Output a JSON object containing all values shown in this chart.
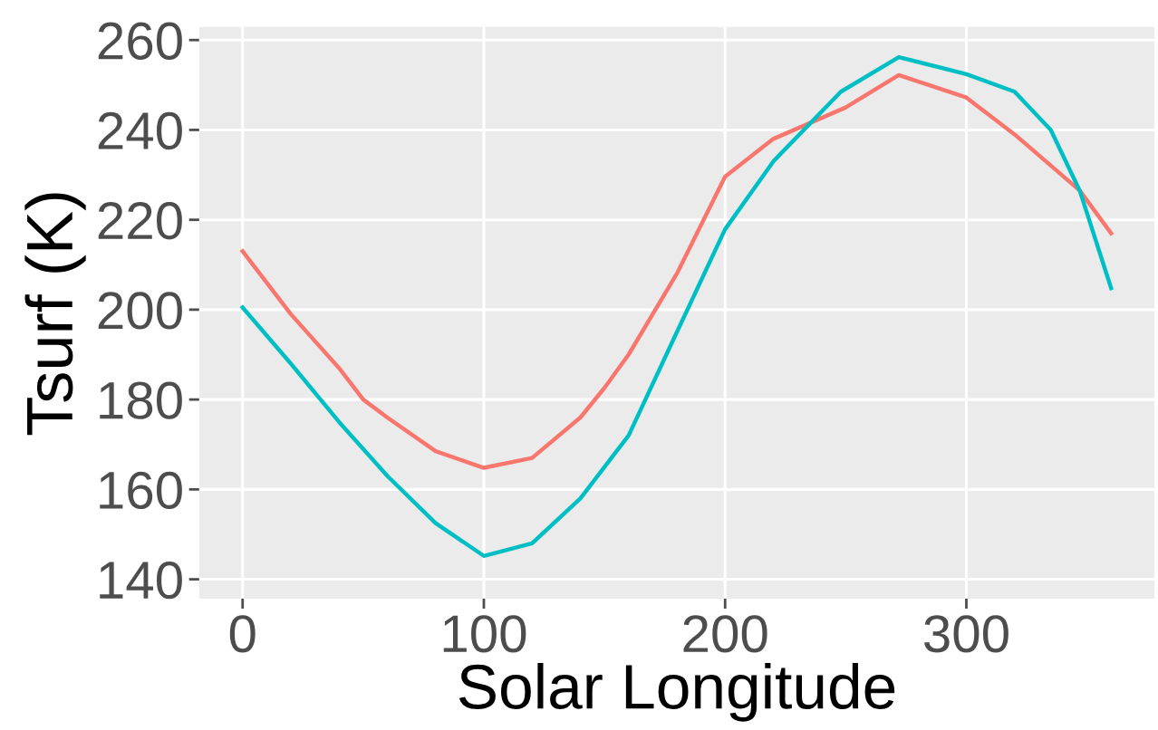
{
  "chart_data": {
    "type": "line",
    "xlabel": "Solar Longitude",
    "ylabel": "Tsurf (K)",
    "xlim": [
      -18,
      378
    ],
    "ylim": [
      135.7,
      262.9
    ],
    "xticks": [
      0,
      100,
      200,
      300
    ],
    "yticks": [
      140,
      160,
      180,
      200,
      220,
      240,
      260
    ],
    "grid": true,
    "marker": "none",
    "line_style": "solid",
    "series": [
      {
        "color": "#f8766d",
        "x": [
          0,
          20,
          40,
          50,
          60,
          80,
          100,
          120,
          140,
          150,
          160,
          180,
          200,
          220,
          250,
          272,
          300,
          320,
          347,
          360
        ],
        "values": [
          213,
          199,
          187,
          180,
          176,
          168.5,
          164.8,
          167,
          176,
          182.6,
          190,
          208,
          229.6,
          238,
          245,
          252.2,
          247.2,
          239,
          226.5,
          217
        ]
      },
      {
        "color": "#00bfc4",
        "x": [
          0,
          20,
          40,
          50,
          60,
          80,
          100,
          120,
          140,
          150,
          160,
          180,
          200,
          220,
          248,
          272,
          300,
          320,
          335,
          347,
          360
        ],
        "values": [
          200.5,
          188,
          175,
          169,
          163,
          152.5,
          145.2,
          148,
          158,
          165,
          172,
          195,
          217.9,
          233,
          248.5,
          256.2,
          252.4,
          248.5,
          240,
          226.5,
          204.8
        ]
      }
    ]
  }
}
